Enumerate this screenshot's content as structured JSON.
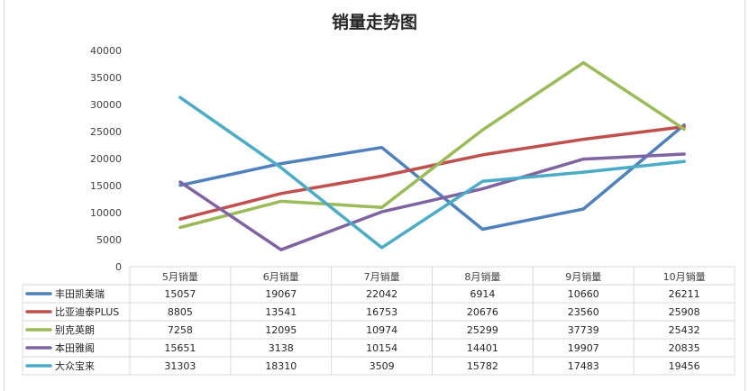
{
  "chart_data": {
    "type": "line",
    "title": "销量走势图",
    "categories": [
      "5月销量",
      "6月销量",
      "7月销量",
      "8月销量",
      "9月销量",
      "10月销量"
    ],
    "ylim": [
      0,
      40000
    ],
    "yticks": [
      0,
      5000,
      10000,
      15000,
      20000,
      25000,
      30000,
      35000,
      40000
    ],
    "grid": false,
    "legend": "data-table",
    "series": [
      {
        "name": "丰田凯美瑞",
        "color": "#4F81BD",
        "values": [
          15057,
          19067,
          22042,
          6914,
          10660,
          26211
        ]
      },
      {
        "name": "比亚迪泰PLUS",
        "color": "#C0504D",
        "values": [
          8805,
          13541,
          16753,
          20676,
          23560,
          25908
        ]
      },
      {
        "name": "别克英朗",
        "color": "#9BBB59",
        "values": [
          7258,
          12095,
          10974,
          25299,
          37739,
          25432
        ]
      },
      {
        "name": "本田雅阁",
        "color": "#8064A2",
        "values": [
          15651,
          3138,
          10154,
          14401,
          19907,
          20835
        ]
      },
      {
        "name": "大众宝来",
        "color": "#4BACC6",
        "values": [
          31303,
          18310,
          3509,
          15782,
          17483,
          19456
        ]
      }
    ]
  }
}
